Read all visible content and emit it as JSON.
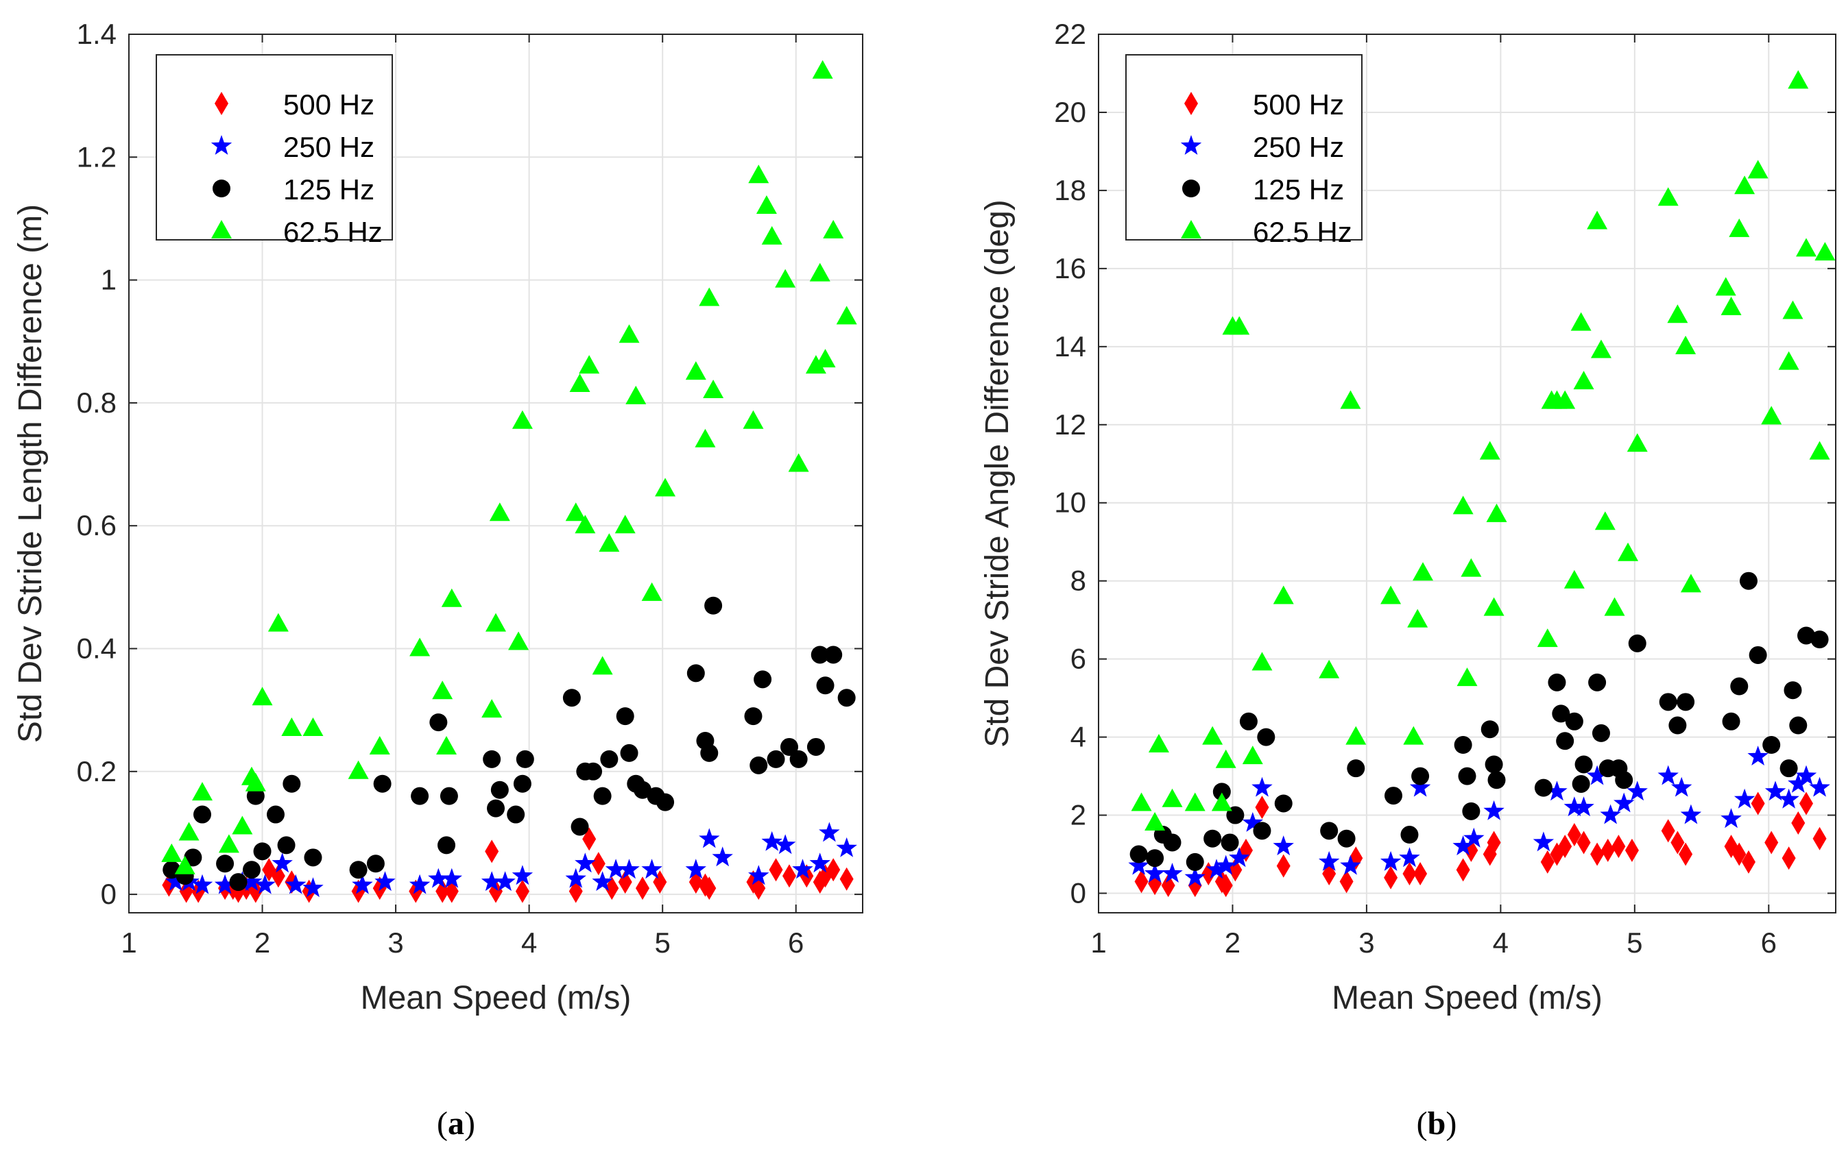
{
  "figure": {
    "colors": {
      "red": "#ff0000",
      "blue": "#0000ff",
      "black": "#000000",
      "green": "#00ff00",
      "grid": "#e3e3e3",
      "axis": "#262626"
    },
    "legend_placement": "top-left",
    "grid": true
  },
  "chart_data": [
    {
      "type": "scatter",
      "title": "",
      "xlabel": "Mean Speed (m/s)",
      "ylabel": "Std Dev Stride Length Difference (m)",
      "xlim": [
        1,
        6.5
      ],
      "ylim": [
        -0.03,
        1.4
      ],
      "xticks": [
        1,
        2,
        3,
        4,
        5,
        6
      ],
      "yticks": [
        0,
        0.2,
        0.4,
        0.6,
        0.8,
        1,
        1.2,
        1.4
      ],
      "ytick_labels": [
        "0",
        "0.2",
        "0.4",
        "0.6",
        "0.8",
        "1",
        "1.2",
        "1.4"
      ],
      "caption": {
        "open": "(",
        "letter": "a",
        "close": ")"
      },
      "series": [
        {
          "name": "500 Hz",
          "marker": "diamond",
          "color": "#ff0000",
          "x": [
            1.3,
            1.43,
            1.52,
            1.72,
            1.78,
            1.82,
            1.88,
            1.95,
            2.05,
            2.12,
            2.22,
            2.35,
            2.72,
            2.88,
            3.15,
            3.35,
            3.42,
            3.72,
            3.75,
            3.95,
            4.35,
            4.45,
            4.52,
            4.62,
            4.72,
            4.85,
            4.98,
            5.25,
            5.32,
            5.35,
            5.68,
            5.72,
            5.85,
            5.95,
            6.08,
            6.18,
            6.22,
            6.28,
            6.38
          ],
          "y": [
            0.015,
            0.005,
            0.005,
            0.01,
            0.01,
            0.005,
            0.01,
            0.005,
            0.04,
            0.03,
            0.02,
            0.005,
            0.005,
            0.01,
            0.005,
            0.005,
            0.005,
            0.07,
            0.005,
            0.005,
            0.005,
            0.09,
            0.05,
            0.01,
            0.02,
            0.01,
            0.02,
            0.02,
            0.015,
            0.01,
            0.02,
            0.01,
            0.04,
            0.03,
            0.03,
            0.02,
            0.03,
            0.04,
            0.025
          ]
        },
        {
          "name": "250 Hz",
          "marker": "star",
          "color": "#0000ff",
          "x": [
            1.35,
            1.45,
            1.55,
            1.72,
            1.85,
            1.92,
            2.02,
            2.15,
            2.25,
            2.38,
            2.75,
            2.92,
            3.18,
            3.32,
            3.42,
            3.72,
            3.82,
            3.95,
            4.35,
            4.42,
            4.55,
            4.65,
            4.75,
            4.92,
            5.25,
            5.35,
            5.45,
            5.72,
            5.82,
            5.92,
            6.05,
            6.18,
            6.25,
            6.38
          ],
          "y": [
            0.02,
            0.02,
            0.015,
            0.015,
            0.02,
            0.02,
            0.015,
            0.05,
            0.015,
            0.01,
            0.015,
            0.02,
            0.015,
            0.025,
            0.025,
            0.02,
            0.02,
            0.03,
            0.025,
            0.05,
            0.02,
            0.04,
            0.04,
            0.04,
            0.04,
            0.09,
            0.06,
            0.03,
            0.085,
            0.08,
            0.04,
            0.05,
            0.1,
            0.075
          ]
        },
        {
          "name": "125 Hz",
          "marker": "circle",
          "color": "#000000",
          "x": [
            1.32,
            1.42,
            1.48,
            1.55,
            1.72,
            1.82,
            1.92,
            1.95,
            2.0,
            2.1,
            2.18,
            2.22,
            2.38,
            2.72,
            2.85,
            2.9,
            3.18,
            3.32,
            3.38,
            3.4,
            3.72,
            3.75,
            3.78,
            3.9,
            3.95,
            3.97,
            4.32,
            4.38,
            4.42,
            4.48,
            4.55,
            4.6,
            4.72,
            4.75,
            4.8,
            4.85,
            4.95,
            5.02,
            5.25,
            5.32,
            5.38,
            5.35,
            5.68,
            5.72,
            5.75,
            5.85,
            5.95,
            6.02,
            6.15,
            6.18,
            6.22,
            6.28,
            6.38
          ],
          "y": [
            0.04,
            0.03,
            0.06,
            0.13,
            0.05,
            0.02,
            0.04,
            0.16,
            0.07,
            0.13,
            0.08,
            0.18,
            0.06,
            0.04,
            0.05,
            0.18,
            0.16,
            0.28,
            0.08,
            0.16,
            0.22,
            0.14,
            0.17,
            0.13,
            0.18,
            0.22,
            0.32,
            0.11,
            0.2,
            0.2,
            0.16,
            0.22,
            0.29,
            0.23,
            0.18,
            0.17,
            0.16,
            0.15,
            0.36,
            0.25,
            0.47,
            0.23,
            0.29,
            0.21,
            0.35,
            0.22,
            0.24,
            0.22,
            0.24,
            0.39,
            0.34,
            0.39,
            0.32
          ]
        },
        {
          "name": "62.5 Hz",
          "marker": "triangle",
          "color": "#00ff00",
          "x": [
            1.32,
            1.42,
            1.45,
            1.55,
            1.75,
            1.85,
            1.92,
            1.95,
            2.0,
            2.12,
            2.22,
            2.38,
            2.72,
            2.88,
            3.18,
            3.35,
            3.38,
            3.42,
            3.72,
            3.75,
            3.78,
            3.92,
            3.95,
            4.35,
            4.38,
            4.42,
            4.45,
            4.55,
            4.6,
            4.72,
            4.75,
            4.8,
            4.92,
            5.02,
            5.25,
            5.32,
            5.38,
            5.35,
            5.68,
            5.72,
            5.78,
            5.82,
            5.92,
            6.02,
            6.15,
            6.18,
            6.22,
            6.28,
            6.38
          ],
          "y": [
            0.065,
            0.045,
            0.1,
            0.165,
            0.08,
            0.11,
            0.19,
            0.18,
            0.32,
            0.44,
            0.27,
            0.27,
            0.2,
            0.24,
            0.4,
            0.33,
            0.24,
            0.48,
            0.3,
            0.44,
            0.62,
            0.41,
            0.77,
            0.62,
            0.83,
            0.6,
            0.86,
            0.37,
            0.57,
            0.6,
            0.91,
            0.81,
            0.49,
            0.66,
            0.85,
            0.74,
            0.82,
            0.97,
            0.77,
            1.17,
            1.12,
            1.07,
            1.0,
            0.7,
            0.86,
            1.01,
            0.87,
            1.08,
            0.94
          ]
        },
        {
          "name": "",
          "marker": "triangle",
          "color": "#00ff00",
          "x": [
            6.2
          ],
          "y": [
            1.34
          ]
        }
      ]
    },
    {
      "type": "scatter",
      "title": "",
      "xlabel": "Mean Speed (m/s)",
      "ylabel": "Std Dev Stride Angle Difference (deg)",
      "xlim": [
        1,
        6.5
      ],
      "ylim": [
        -0.5,
        22
      ],
      "xticks": [
        1,
        2,
        3,
        4,
        5,
        6
      ],
      "yticks": [
        0,
        2,
        4,
        6,
        8,
        10,
        12,
        14,
        16,
        18,
        20,
        22
      ],
      "ytick_labels": [
        "0",
        "2",
        "4",
        "6",
        "8",
        "10",
        "12",
        "14",
        "16",
        "18",
        "20",
        "22"
      ],
      "caption": {
        "open": "(",
        "letter": "b",
        "close": ")"
      },
      "series": [
        {
          "name": "500 Hz",
          "marker": "diamond",
          "color": "#ff0000",
          "x": [
            1.32,
            1.42,
            1.52,
            1.72,
            1.82,
            1.92,
            1.95,
            2.02,
            2.1,
            2.22,
            2.38,
            2.72,
            2.85,
            2.92,
            3.18,
            3.32,
            3.4,
            3.72,
            3.78,
            3.92,
            3.95,
            4.35,
            4.42,
            4.48,
            4.55,
            4.62,
            4.72,
            4.8,
            4.88,
            4.98,
            5.25,
            5.32,
            5.38,
            5.72,
            5.78,
            5.85,
            5.92,
            6.02,
            6.15,
            6.22,
            6.28,
            6.38
          ],
          "y": [
            0.3,
            0.25,
            0.2,
            0.2,
            0.5,
            0.3,
            0.2,
            0.6,
            1.1,
            2.2,
            0.7,
            0.5,
            0.3,
            0.9,
            0.4,
            0.5,
            0.5,
            0.6,
            1.1,
            1.0,
            1.3,
            0.8,
            1.0,
            1.2,
            1.5,
            1.3,
            1.0,
            1.1,
            1.2,
            1.1,
            1.6,
            1.3,
            1.0,
            1.2,
            1.0,
            0.8,
            2.3,
            1.3,
            0.9,
            1.8,
            2.3,
            1.4
          ]
        },
        {
          "name": "250 Hz",
          "marker": "star",
          "color": "#0000ff",
          "x": [
            1.3,
            1.42,
            1.55,
            1.72,
            1.88,
            1.95,
            2.05,
            2.15,
            2.22,
            2.38,
            2.72,
            2.88,
            3.18,
            3.32,
            3.4,
            3.72,
            3.8,
            3.95,
            4.32,
            4.42,
            4.55,
            4.62,
            4.72,
            4.82,
            4.92,
            5.02,
            5.25,
            5.35,
            5.42,
            5.72,
            5.82,
            5.92,
            6.05,
            6.15,
            6.22,
            6.28,
            6.38
          ],
          "y": [
            0.7,
            0.5,
            0.5,
            0.4,
            0.6,
            0.7,
            0.9,
            1.8,
            2.7,
            1.2,
            0.8,
            0.7,
            0.8,
            0.9,
            2.7,
            1.2,
            1.4,
            2.1,
            1.3,
            2.6,
            2.2,
            2.2,
            3.0,
            2.0,
            2.3,
            2.6,
            3.0,
            2.7,
            2.0,
            1.9,
            2.4,
            3.5,
            2.6,
            2.4,
            2.8,
            3.0,
            2.7
          ]
        },
        {
          "name": "125 Hz",
          "marker": "circle",
          "color": "#000000",
          "x": [
            1.3,
            1.42,
            1.48,
            1.55,
            1.72,
            1.85,
            1.92,
            1.98,
            2.02,
            2.12,
            2.22,
            2.25,
            2.38,
            2.72,
            2.85,
            2.92,
            3.2,
            3.32,
            3.4,
            3.72,
            3.75,
            3.78,
            3.92,
            3.95,
            3.97,
            4.32,
            4.42,
            4.45,
            4.48,
            4.55,
            4.6,
            4.62,
            4.72,
            4.75,
            4.8,
            4.88,
            4.92,
            5.02,
            5.25,
            5.32,
            5.38,
            5.72,
            5.78,
            5.85,
            5.92,
            6.02,
            6.15,
            6.18,
            6.22,
            6.28,
            6.38
          ],
          "y": [
            1.0,
            0.9,
            1.5,
            1.3,
            0.8,
            1.4,
            2.6,
            1.3,
            2.0,
            4.4,
            1.6,
            4.0,
            2.3,
            1.6,
            1.4,
            3.2,
            2.5,
            1.5,
            3.0,
            3.8,
            3.0,
            2.1,
            4.2,
            3.3,
            2.9,
            2.7,
            5.4,
            4.6,
            3.9,
            4.4,
            2.8,
            3.3,
            5.4,
            4.1,
            3.2,
            3.2,
            2.9,
            6.4,
            4.9,
            4.3,
            4.9,
            4.4,
            5.3,
            8.0,
            6.1,
            3.8,
            3.2,
            5.2,
            4.3,
            6.6,
            6.5
          ]
        },
        {
          "name": "62.5 Hz",
          "marker": "triangle",
          "color": "#00ff00",
          "x": [
            1.32,
            1.42,
            1.45,
            1.55,
            1.72,
            1.85,
            1.92,
            1.95,
            2.0,
            2.05,
            2.15,
            2.22,
            2.38,
            2.72,
            2.88,
            2.92,
            3.18,
            3.35,
            3.38,
            3.42,
            3.72,
            3.75,
            3.78,
            3.92,
            3.95,
            3.97,
            4.35,
            4.38,
            4.42,
            4.48,
            4.55,
            4.6,
            4.62,
            4.72,
            4.75,
            4.78,
            4.85,
            4.95,
            5.02,
            5.25,
            5.32,
            5.38,
            5.42,
            5.68,
            5.72,
            5.78,
            5.82,
            5.92,
            6.02,
            6.15,
            6.18,
            6.22,
            6.28,
            6.38
          ],
          "y": [
            2.3,
            1.8,
            3.8,
            2.4,
            2.3,
            4.0,
            2.3,
            3.4,
            14.5,
            14.5,
            3.5,
            5.9,
            7.6,
            5.7,
            12.6,
            4.0,
            7.6,
            4.0,
            7.0,
            8.2,
            9.9,
            5.5,
            8.3,
            11.3,
            7.3,
            9.7,
            6.5,
            12.6,
            12.6,
            12.6,
            8.0,
            14.6,
            13.1,
            17.2,
            13.9,
            9.5,
            7.3,
            8.7,
            11.5,
            17.8,
            14.8,
            14.0,
            7.9,
            15.5,
            15.0,
            17.0,
            18.1,
            18.5,
            12.2,
            13.6,
            14.9,
            20.8,
            16.5,
            11.3
          ]
        },
        {
          "name": "",
          "marker": "triangle",
          "color": "#00ff00",
          "x": [
            6.42
          ],
          "y": [
            16.4
          ]
        }
      ]
    }
  ]
}
